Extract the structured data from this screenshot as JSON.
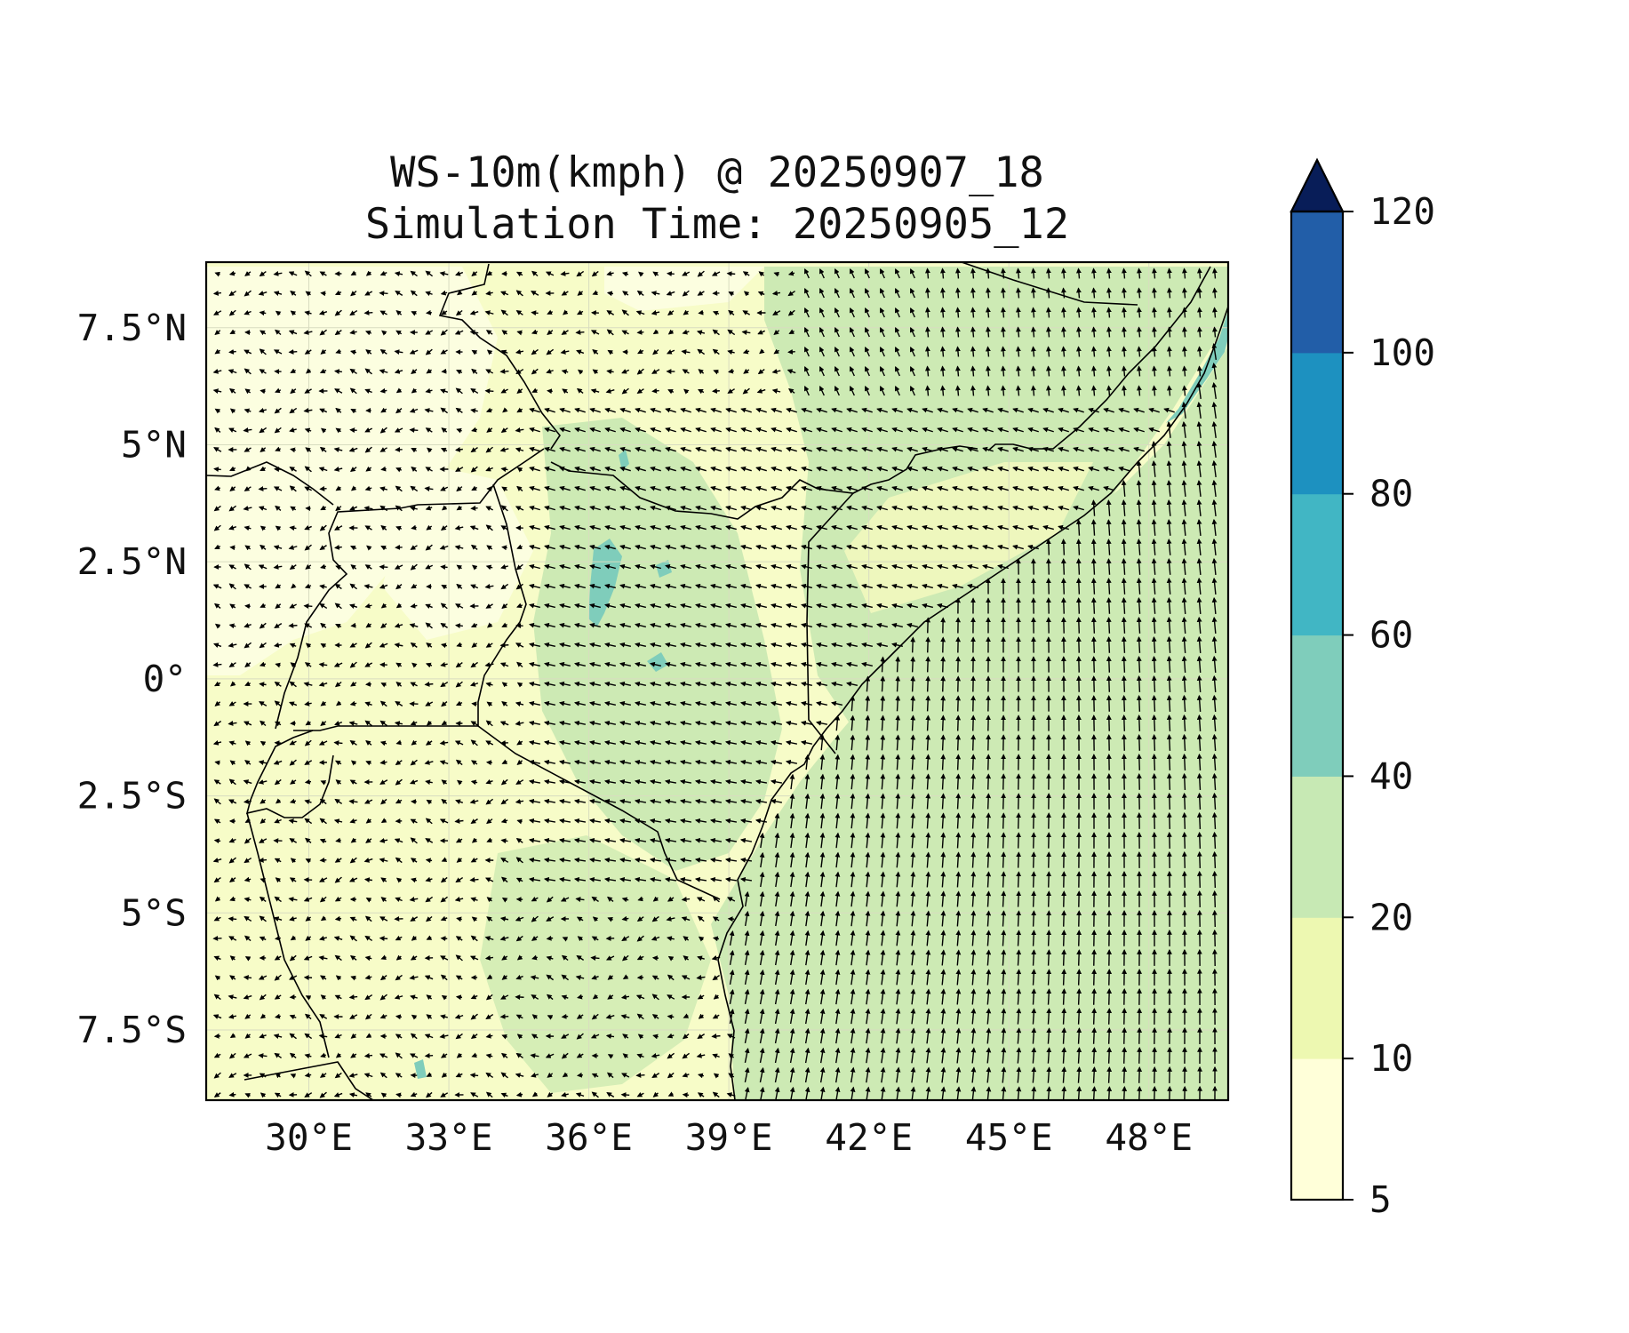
{
  "figure": {
    "title_line1": "WS-10m(kmph) @ 20250907_18",
    "title_line2": "Simulation Time: 20250905_12"
  },
  "map": {
    "lon_range": [
      27.8,
      49.7
    ],
    "lat_range": [
      -9.0,
      8.9
    ],
    "x_ticks": [
      {
        "value": 30,
        "label": "30°E"
      },
      {
        "value": 33,
        "label": "33°E"
      },
      {
        "value": 36,
        "label": "36°E"
      },
      {
        "value": 39,
        "label": "39°E"
      },
      {
        "value": 42,
        "label": "42°E"
      },
      {
        "value": 45,
        "label": "45°E"
      },
      {
        "value": 48,
        "label": "48°E"
      }
    ],
    "y_ticks": [
      {
        "value": 7.5,
        "label": "7.5°N"
      },
      {
        "value": 5,
        "label": "5°N"
      },
      {
        "value": 2.5,
        "label": "2.5°N"
      },
      {
        "value": 0,
        "label": "0°"
      },
      {
        "value": -2.5,
        "label": "2.5°S"
      },
      {
        "value": -5,
        "label": "5°S"
      },
      {
        "value": -7.5,
        "label": "7.5°S"
      }
    ],
    "layers": [
      "wind speed filled contours",
      "wind vectors",
      "country borders",
      "coastline",
      "lat/lon gridlines"
    ]
  },
  "colorbar": {
    "levels": [
      5,
      10,
      20,
      40,
      60,
      80,
      100,
      120
    ],
    "labels": [
      "5",
      "10",
      "20",
      "40",
      "60",
      "80",
      "100",
      "120"
    ],
    "colors": [
      "#ffffd9",
      "#edf8b1",
      "#c7e9b4",
      "#7fcdbb",
      "#41b6c4",
      "#1d91c0",
      "#225ea8",
      "#0c2c84"
    ],
    "extend": "max",
    "extend_color": "#081d58"
  }
}
